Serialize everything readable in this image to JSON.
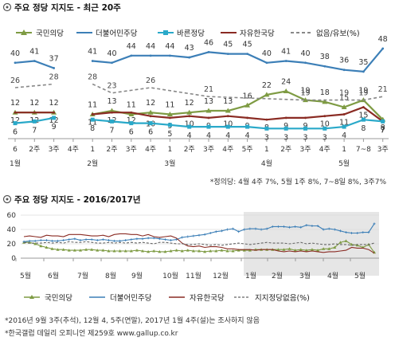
{
  "top": {
    "title": "주요 정당 지지도 - 최근 20주",
    "legend": [
      "국민의당",
      "더불어민주당",
      "바른정당",
      "자유한국당",
      "없음/유보(%)"
    ],
    "note": "*정의당: 4월 4주 7%, 5월 1주 8%, 7~8일 8%, 3주7%",
    "colors": {
      "minju": "#3c7fb7",
      "kukmin": "#7e9b43",
      "bareun": "#2aa9c9",
      "jayu": "#8a2b23",
      "none": "#888888"
    }
  },
  "bottom": {
    "title": "주요 정당 지지도 - 2016/2017년",
    "legend": [
      "국민의당",
      "더불어민주당",
      "자유한국당",
      "지지정당없음(%)"
    ],
    "notes": [
      "*2016년 9월 3주(추석), 12월 4, 5주(연말), 2017년 1월 4주(설)는 조사하지 않음",
      "*한국갤럽 데일리 오피니언 제259호 www.gallup.co.kr"
    ]
  },
  "chart_data": [
    {
      "type": "line",
      "title": "주요 정당 지지도 - 최근 20주",
      "categories": [
        "1월 1주",
        "1월 2주",
        "1월 3주",
        "1월 4주",
        "2월 1주",
        "2월 2주",
        "2월 3주",
        "2월 4주",
        "3월 1주",
        "3월 2주",
        "3월 3주",
        "3월 4주",
        "3월 5주",
        "4월 1주",
        "4월 2주",
        "4월 3주",
        "4월 4주",
        "5월 1주",
        "5월 7~8일",
        "5월 3주"
      ],
      "tick_labels_row1": [
        "6",
        "2주",
        "3주",
        "4주",
        "1",
        "2주",
        "3주",
        "4주",
        "1",
        "2주",
        "3주",
        "4주",
        "5주",
        "1",
        "2주",
        "3주",
        "4주",
        "1",
        "7~8",
        "3주"
      ],
      "tick_labels_row2": [
        "1월",
        "",
        "",
        "",
        "2월",
        "",
        "",
        "",
        "3월",
        "",
        "",
        "",
        "",
        "4월",
        "",
        "",
        "",
        "5월",
        "",
        ""
      ],
      "series": [
        {
          "name": "더불어민주당",
          "values": [
            40,
            41,
            37,
            null,
            41,
            40,
            44,
            44,
            44,
            43,
            46,
            45,
            45,
            40,
            41,
            40,
            38,
            36,
            35,
            48
          ]
        },
        {
          "name": "국민의당",
          "values": [
            12,
            12,
            12,
            null,
            11,
            13,
            11,
            12,
            11,
            12,
            13,
            13,
            16,
            22,
            24,
            19,
            18,
            15,
            19,
            8
          ]
        },
        {
          "name": "자유한국당",
          "values": [
            12,
            12,
            12,
            null,
            11,
            12,
            12,
            10,
            9,
            10,
            9,
            10,
            9,
            8,
            9,
            9,
            10,
            11,
            15,
            7
          ]
        },
        {
          "name": "바른정당",
          "values": [
            6,
            7,
            9,
            null,
            8,
            7,
            6,
            6,
            5,
            4,
            4,
            4,
            4,
            3,
            3,
            3,
            3,
            4,
            8,
            7
          ]
        },
        {
          "name": "없음/유보(%)",
          "values": [
            26,
            null,
            28,
            null,
            28,
            23,
            null,
            26,
            null,
            null,
            21,
            null,
            null,
            null,
            null,
            19,
            null,
            19,
            19,
            21
          ]
        }
      ],
      "ylim": [
        0,
        52
      ]
    },
    {
      "type": "line",
      "title": "주요 정당 지지도 - 2016/2017년",
      "x_labels": [
        "5월",
        "6월",
        "7월",
        "8월",
        "9월",
        "10월",
        "11월",
        "12월",
        "1월",
        "2월",
        "3월",
        "4월",
        "5월"
      ],
      "ytick_labels": [
        "0",
        "20",
        "40",
        "60"
      ],
      "ylim": [
        0,
        60
      ],
      "series": [
        {
          "name": "국민의당",
          "values": [
            22,
            22,
            20,
            17,
            15,
            13,
            12,
            12,
            11,
            11,
            11,
            12,
            12,
            11,
            11,
            10,
            10,
            10,
            10,
            10,
            11,
            10,
            9,
            10,
            9,
            9,
            10,
            11,
            10,
            11,
            10,
            10,
            9,
            10,
            10,
            11,
            10,
            10,
            11,
            11,
            11,
            12,
            12,
            12,
            12,
            12,
            12,
            13,
            11,
            12,
            11,
            12,
            11,
            13,
            13,
            15,
            22,
            24,
            19,
            18,
            15,
            19,
            8
          ]
        },
        {
          "name": "더불어민주당",
          "values": [
            23,
            24,
            24,
            25,
            25,
            24,
            24,
            25,
            26,
            27,
            25,
            26,
            26,
            25,
            26,
            25,
            24,
            24,
            25,
            26,
            27,
            27,
            28,
            28,
            27,
            26,
            25,
            26,
            29,
            30,
            31,
            32,
            33,
            35,
            37,
            38,
            40,
            41,
            37,
            40,
            41,
            41,
            40,
            41,
            44,
            44,
            44,
            43,
            44,
            43,
            46,
            45,
            45,
            40,
            41,
            40,
            38,
            36,
            35,
            35,
            36,
            36,
            48
          ]
        },
        {
          "name": "자유한국당",
          "values": [
            30,
            31,
            30,
            29,
            32,
            31,
            31,
            30,
            33,
            33,
            33,
            32,
            31,
            31,
            32,
            30,
            33,
            34,
            34,
            33,
            33,
            31,
            33,
            30,
            29,
            30,
            31,
            28,
            21,
            17,
            16,
            17,
            15,
            16,
            16,
            15,
            13,
            13,
            12,
            12,
            12,
            11,
            12,
            12,
            12,
            10,
            9,
            10,
            9,
            10,
            9,
            10,
            9,
            8,
            9,
            9,
            10,
            11,
            15,
            14,
            14,
            12,
            7
          ]
        },
        {
          "name": "지지정당없음(%)",
          "values": [
            22,
            21,
            21,
            21,
            22,
            21,
            22,
            21,
            23,
            22,
            22,
            23,
            22,
            21,
            21,
            22,
            21,
            22,
            21,
            22,
            21,
            22,
            21,
            20,
            22,
            22,
            21,
            20,
            20,
            19,
            19,
            20,
            19,
            18,
            19,
            18,
            19,
            20,
            21,
            20,
            19,
            20,
            21,
            22,
            21,
            21,
            21,
            20,
            21,
            22,
            20,
            21,
            20,
            19,
            19,
            20,
            19,
            19,
            18,
            19,
            19,
            19,
            21
          ]
        }
      ]
    }
  ]
}
